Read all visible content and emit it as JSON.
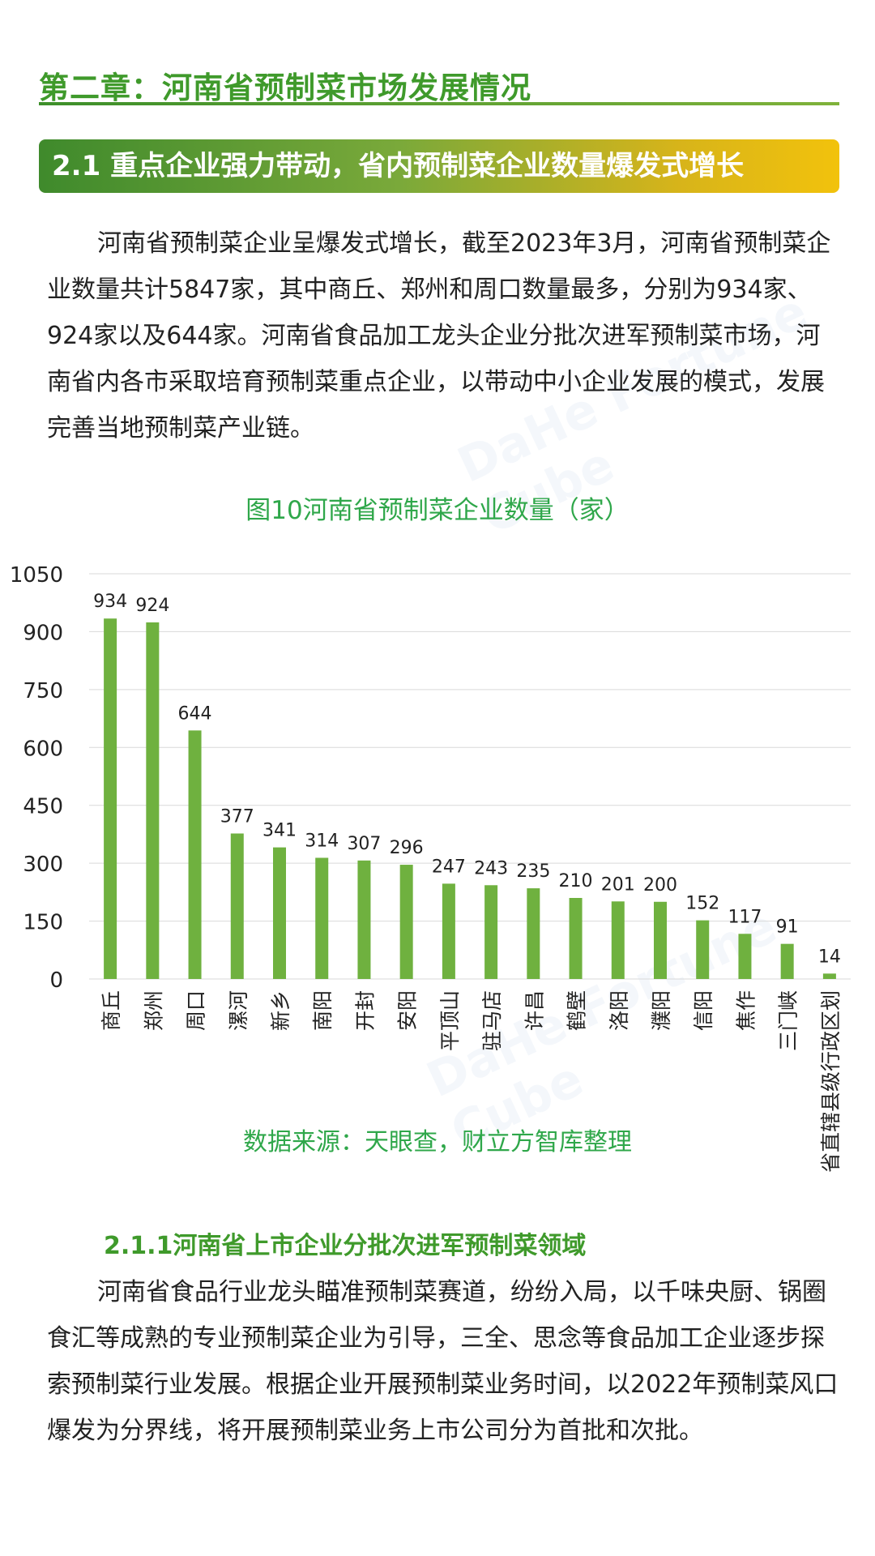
{
  "chapter_title": "第二章：河南省预制菜市场发展情况",
  "section_title": "2.1 重点企业强力带动，省内预制菜企业数量爆发式增长",
  "paragraph1": "河南省预制菜企业呈爆发式增长，截至2023年3月，河南省预制菜企业数量共计5847家，其中商丘、郑州和周口数量最多，分别为934家、924家以及644家。河南省食品加工龙头企业分批次进军预制菜市场，河南省内各市采取培育预制菜重点企业，以带动中小企业发展的模式，发展完善当地预制菜产业链。",
  "watermark_text": "DaHe Fortune Cube",
  "chart_caption": "图10河南省预制菜企业数量（家）",
  "chart_source": "数据来源：天眼查，财立方智库整理",
  "subsection_title": "2.1.1河南省上市企业分批次进军预制菜领域",
  "paragraph2": "河南省食品行业龙头瞄准预制菜赛道，纷纷入局，以千味央厨、锅圈食汇等成熟的专业预制菜企业为引导，三全、思念等食品加工企业逐步探索预制菜行业发展。根据企业开展预制菜业务时间，以2022年预制菜风口爆发为分界线，将开展预制菜业务上市公司分为首批和次批。",
  "colors": {
    "accent_green": "#3f9a2b",
    "bar": "#6fb13f",
    "caption_green": "#2fa74a"
  },
  "chart_data": {
    "type": "bar",
    "title": "图10河南省预制菜企业数量（家）",
    "categories": [
      "商丘",
      "郑州",
      "周口",
      "漯河",
      "新乡",
      "南阳",
      "开封",
      "安阳",
      "平顶山",
      "驻马店",
      "许昌",
      "鹤壁",
      "洛阳",
      "濮阳",
      "信阳",
      "焦作",
      "三门峡",
      "省直辖县级行政区划"
    ],
    "values": [
      934,
      924,
      644,
      377,
      341,
      314,
      307,
      296,
      247,
      243,
      235,
      210,
      201,
      200,
      152,
      117,
      91,
      14
    ],
    "yticks": [
      0,
      150,
      300,
      450,
      600,
      750,
      900,
      1050
    ],
    "ylim": [
      0,
      1050
    ],
    "xlabel": "",
    "ylabel": "",
    "grid": true
  }
}
